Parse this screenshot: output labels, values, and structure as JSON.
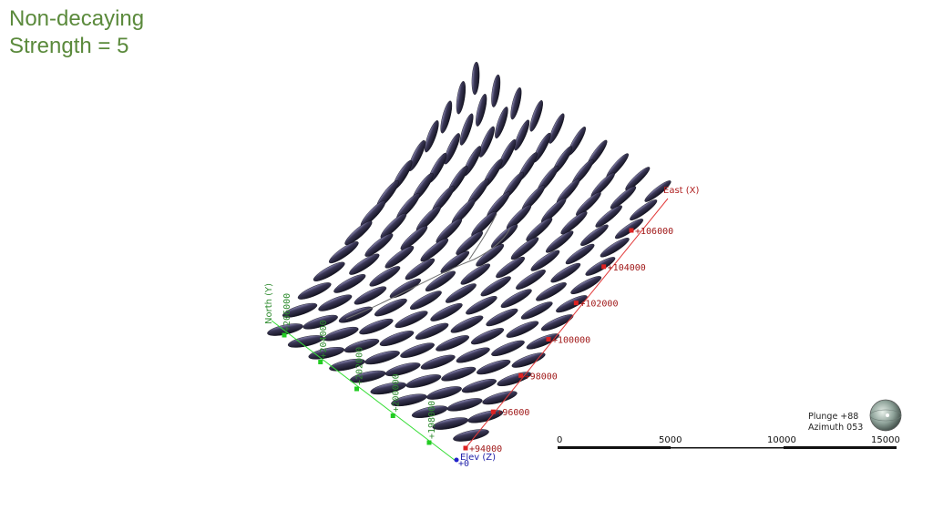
{
  "title": {
    "line1": "Non-decaying",
    "line2": "Strength = 5"
  },
  "axes": {
    "east": {
      "label": "East (X)",
      "ticks": [
        "+94000",
        "+96000",
        "+98000",
        "+100000",
        "+102000",
        "+104000",
        "+106000"
      ],
      "color": "#cc2222"
    },
    "north": {
      "label": "North (Y)",
      "ticks": [
        "+206000",
        "+204000",
        "+202000",
        "+200000",
        "+198000"
      ],
      "color": "#33aa33"
    },
    "elev": {
      "label": "Elev (Z)",
      "tick": "+0",
      "color": "#2222cc"
    }
  },
  "view": {
    "plunge": "Plunge +88",
    "azimuth": "Azimuth 053"
  },
  "scale_bar": {
    "labels": [
      "0",
      "5000",
      "10000",
      "15000"
    ]
  },
  "colors": {
    "ellipsoid": "#2b2940",
    "ellipsoid_highlight": "#7d7aa6",
    "title": "#5b8a3c"
  },
  "icons": {
    "view_compass": "orientation-sphere-icon"
  }
}
